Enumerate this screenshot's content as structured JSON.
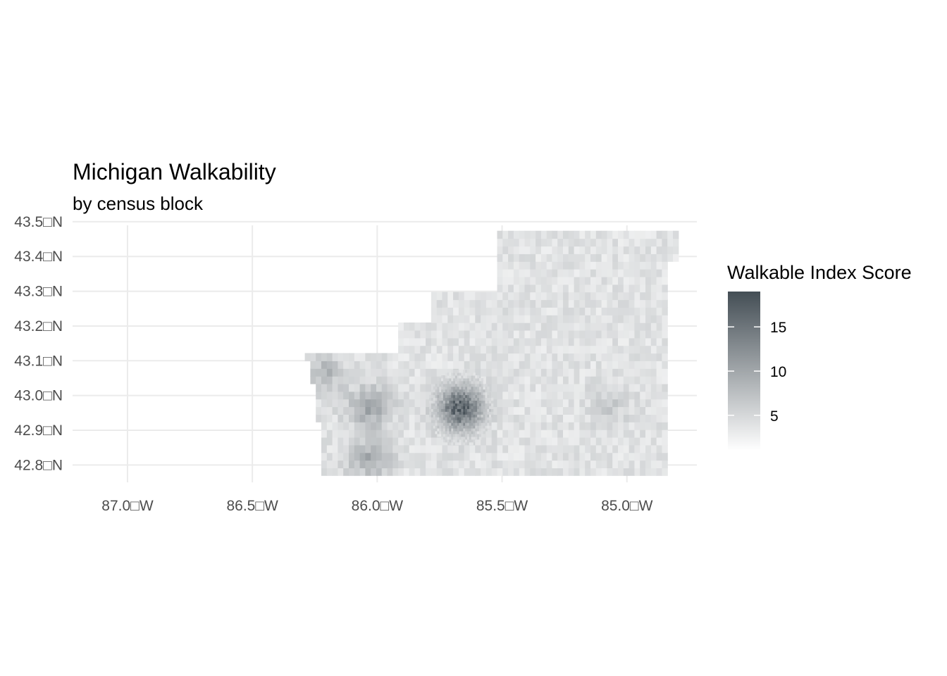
{
  "title": "Michigan Walkability",
  "subtitle": "by census block",
  "x_axis": {
    "ticks": [
      {
        "value": -87.0,
        "label": "87.0□W"
      },
      {
        "value": -86.5,
        "label": "86.5□W"
      },
      {
        "value": -86.0,
        "label": "86.0□W"
      },
      {
        "value": -85.5,
        "label": "85.5□W"
      },
      {
        "value": -85.0,
        "label": "85.0□W"
      }
    ]
  },
  "y_axis": {
    "ticks": [
      {
        "value": 43.5,
        "label": "43.5□N"
      },
      {
        "value": 43.4,
        "label": "43.4□N"
      },
      {
        "value": 43.3,
        "label": "43.3□N"
      },
      {
        "value": 43.2,
        "label": "43.2□N"
      },
      {
        "value": 43.1,
        "label": "43.1□N"
      },
      {
        "value": 43.0,
        "label": "43.0□N"
      },
      {
        "value": 42.9,
        "label": "42.9□N"
      },
      {
        "value": 42.8,
        "label": "42.8□N"
      }
    ]
  },
  "legend": {
    "title": "Walkable Index Score",
    "min": 1,
    "max": 19,
    "ticks": [
      {
        "value": 15,
        "label": "15"
      },
      {
        "value": 10,
        "label": "10"
      },
      {
        "value": 5,
        "label": "5"
      }
    ],
    "color_low": "#ffffff",
    "color_high": "#444e55"
  },
  "chart_data": {
    "type": "heatmap",
    "title": "Michigan Walkability",
    "subtitle": "by census block",
    "xlabel": "",
    "ylabel": "",
    "xlim": [
      -87.22,
      -84.72
    ],
    "ylim": [
      42.74,
      43.52
    ],
    "grid": true,
    "legend_position": "right",
    "value_range": [
      1,
      19
    ],
    "region_extent": {
      "lon": [
        -86.29,
        -84.84
      ],
      "lat": [
        42.77,
        43.47
      ]
    },
    "hotspots": [
      {
        "name": "core",
        "lon": -85.67,
        "lat": 42.96,
        "peak": 17
      },
      {
        "name": "west",
        "lon": -86.03,
        "lat": 42.97,
        "peak": 10
      },
      {
        "name": "southwest",
        "lon": -86.03,
        "lat": 42.82,
        "peak": 9
      },
      {
        "name": "northwest",
        "lon": -86.21,
        "lat": 43.07,
        "peak": 8
      },
      {
        "name": "east",
        "lon": -85.07,
        "lat": 42.97,
        "peak": 6
      }
    ]
  }
}
